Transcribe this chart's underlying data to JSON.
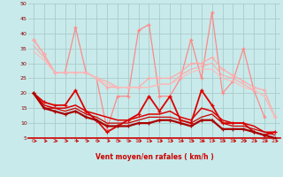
{
  "xlabel": "Vent moyen/en rafales ( km/h )",
  "xlim": [
    -0.5,
    23.5
  ],
  "ylim": [
    5,
    50
  ],
  "yticks": [
    5,
    10,
    15,
    20,
    25,
    30,
    35,
    40,
    45,
    50
  ],
  "xticks": [
    0,
    1,
    2,
    3,
    4,
    5,
    6,
    7,
    8,
    9,
    10,
    11,
    12,
    13,
    14,
    15,
    16,
    17,
    18,
    19,
    20,
    21,
    22,
    23
  ],
  "background_color": "#c8eaea",
  "grid_color": "#aacccc",
  "series": [
    {
      "x": [
        0,
        1,
        2,
        3,
        4,
        5,
        6,
        7,
        8,
        9,
        10,
        11,
        12,
        13,
        14,
        15,
        16,
        17,
        18,
        19,
        20,
        21,
        22
      ],
      "y": [
        38,
        33,
        27,
        27,
        42,
        27,
        25,
        8,
        19,
        19,
        41,
        43,
        19,
        19,
        25,
        38,
        25,
        47,
        20,
        24,
        35,
        21,
        12
      ],
      "color": "#ff8888",
      "lw": 0.9,
      "marker": "+"
    },
    {
      "x": [
        0,
        1,
        2,
        3,
        4,
        5,
        6,
        7,
        8,
        9,
        10,
        11,
        12,
        13,
        14,
        15,
        16,
        17,
        18,
        19,
        20,
        21,
        22,
        23
      ],
      "y": [
        38,
        33,
        27,
        27,
        27,
        27,
        25,
        22,
        22,
        22,
        22,
        25,
        25,
        25,
        27,
        30,
        30,
        32,
        28,
        26,
        24,
        22,
        21,
        12
      ],
      "color": "#ffaaaa",
      "lw": 0.9,
      "marker": "+"
    },
    {
      "x": [
        0,
        1,
        2,
        3,
        4,
        5,
        6,
        7,
        8,
        9,
        10,
        11,
        12,
        13,
        14,
        15,
        16,
        17,
        18,
        19,
        20,
        21,
        22,
        23
      ],
      "y": [
        36,
        32,
        27,
        27,
        27,
        27,
        25,
        24,
        22,
        22,
        22,
        22,
        23,
        23,
        26,
        28,
        29,
        30,
        26,
        25,
        23,
        21,
        19,
        12
      ],
      "color": "#ffaaaa",
      "lw": 0.8,
      "marker": null
    },
    {
      "x": [
        0,
        1,
        2,
        3,
        4,
        5,
        6,
        7,
        8,
        9,
        10,
        11,
        12,
        13,
        14,
        15,
        16,
        17,
        18,
        19,
        20,
        21,
        22,
        23
      ],
      "y": [
        34,
        31,
        27,
        27,
        27,
        27,
        25,
        23,
        22,
        22,
        22,
        22,
        23,
        23,
        25,
        27,
        28,
        28,
        25,
        24,
        22,
        21,
        19,
        12
      ],
      "color": "#ffbbbb",
      "lw": 0.8,
      "marker": null
    },
    {
      "x": [
        0,
        1,
        2,
        3,
        4,
        5,
        6,
        7,
        8,
        9,
        10,
        11,
        12,
        13,
        14,
        15,
        16,
        17,
        18,
        19,
        20,
        21,
        22,
        23
      ],
      "y": [
        20,
        17,
        16,
        16,
        21,
        14,
        11,
        7,
        9,
        11,
        13,
        19,
        14,
        19,
        11,
        10,
        21,
        16,
        10,
        10,
        10,
        7,
        6,
        7
      ],
      "color": "#dd0000",
      "lw": 1.3,
      "marker": "+"
    },
    {
      "x": [
        0,
        1,
        2,
        3,
        4,
        5,
        6,
        7,
        8,
        9,
        10,
        11,
        12,
        13,
        14,
        15,
        16,
        17,
        18,
        19,
        20,
        21,
        22,
        23
      ],
      "y": [
        20,
        16,
        15,
        15,
        16,
        14,
        13,
        12,
        11,
        11,
        12,
        13,
        13,
        14,
        12,
        11,
        15,
        14,
        11,
        10,
        10,
        9,
        7,
        7
      ],
      "color": "#dd0000",
      "lw": 1.1,
      "marker": null
    },
    {
      "x": [
        0,
        1,
        2,
        3,
        4,
        5,
        6,
        7,
        8,
        9,
        10,
        11,
        12,
        13,
        14,
        15,
        16,
        17,
        18,
        19,
        20,
        21,
        22,
        23
      ],
      "y": [
        20,
        15,
        15,
        14,
        15,
        13,
        12,
        10,
        10,
        10,
        11,
        12,
        12,
        12,
        11,
        10,
        12,
        13,
        10,
        9,
        9,
        8,
        7,
        6
      ],
      "color": "#cc0000",
      "lw": 0.9,
      "marker": null
    },
    {
      "x": [
        0,
        1,
        2,
        3,
        4,
        5,
        6,
        7,
        8,
        9,
        10,
        11,
        12,
        13,
        14,
        15,
        16,
        17,
        18,
        19,
        20,
        21,
        22,
        23
      ],
      "y": [
        20,
        15,
        14,
        13,
        14,
        12,
        11,
        9,
        9,
        9,
        10,
        10,
        11,
        11,
        10,
        9,
        11,
        11,
        8,
        8,
        8,
        7,
        6,
        5
      ],
      "color": "#aa0000",
      "lw": 1.6,
      "marker": "+"
    }
  ]
}
